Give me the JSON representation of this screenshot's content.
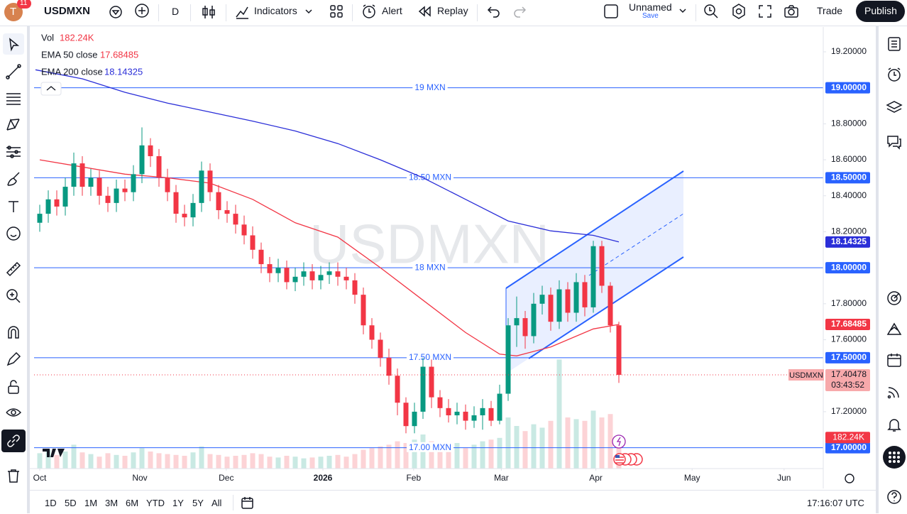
{
  "toolbar": {
    "avatar": "T",
    "badge": "11",
    "symbol": "USDMXN",
    "interval": "D",
    "indicators": "Indicators",
    "alert": "Alert",
    "replay": "Replay",
    "layout_name": "Unnamed",
    "save": "Save",
    "trade": "Trade",
    "publish": "Publish"
  },
  "chart_data": {
    "type": "candlestick",
    "symbol": "USDMXN",
    "watermark": "USDMXN",
    "up_color": "#089981",
    "down_color": "#f23645",
    "open": [
      18.25,
      18.3,
      18.38,
      18.34,
      18.45,
      18.58,
      18.45,
      18.5,
      18.4,
      18.36,
      18.44,
      18.42,
      18.52,
      18.68,
      18.62,
      18.5,
      18.42,
      18.3,
      18.28,
      18.36,
      18.54,
      18.42,
      18.32,
      18.3,
      18.24,
      18.18,
      18.1,
      18.02,
      17.97,
      18.0,
      17.92,
      17.95,
      17.98,
      17.93,
      17.96,
      17.98,
      17.95,
      17.93,
      17.85,
      17.68,
      17.6,
      17.5,
      17.4,
      17.25,
      17.12,
      17.2,
      17.45,
      17.28,
      17.22,
      17.18,
      17.2,
      17.15,
      17.18,
      17.22,
      17.15,
      17.3,
      17.68,
      17.72,
      17.62,
      17.8,
      17.85,
      17.7,
      17.88,
      17.75,
      17.92,
      17.78,
      18.12,
      17.9,
      17.68
    ],
    "high": [
      18.35,
      18.43,
      18.43,
      18.5,
      18.64,
      18.62,
      18.55,
      18.54,
      18.45,
      18.49,
      18.49,
      18.57,
      18.78,
      18.72,
      18.66,
      18.55,
      18.46,
      18.35,
      18.41,
      18.59,
      18.58,
      18.46,
      18.37,
      18.35,
      18.29,
      18.23,
      18.14,
      18.06,
      18.05,
      18.04,
      18.0,
      18.03,
      18.02,
      18.01,
      18.03,
      18.03,
      18.0,
      17.97,
      17.89,
      17.72,
      17.64,
      17.55,
      17.44,
      17.28,
      17.25,
      17.5,
      17.49,
      17.32,
      17.27,
      17.25,
      17.24,
      17.23,
      17.27,
      17.26,
      17.35,
      17.72,
      17.84,
      17.76,
      17.86,
      17.9,
      17.89,
      17.93,
      17.92,
      17.97,
      17.96,
      18.15,
      18.15,
      17.92,
      17.7
    ],
    "low": [
      18.2,
      18.25,
      18.29,
      18.29,
      18.4,
      18.4,
      18.4,
      18.35,
      18.31,
      18.31,
      18.37,
      18.37,
      18.47,
      18.56,
      18.45,
      18.37,
      18.25,
      18.23,
      18.23,
      18.31,
      18.37,
      18.27,
      18.25,
      18.19,
      18.13,
      18.05,
      17.97,
      17.92,
      17.92,
      17.88,
      17.87,
      17.9,
      17.88,
      17.88,
      17.91,
      17.9,
      17.88,
      17.8,
      17.63,
      17.55,
      17.45,
      17.35,
      17.18,
      17.08,
      17.08,
      17.16,
      17.22,
      17.17,
      17.14,
      17.13,
      17.1,
      17.11,
      17.1,
      17.12,
      17.13,
      17.26,
      17.56,
      17.55,
      17.58,
      17.74,
      17.65,
      17.66,
      17.7,
      17.7,
      17.73,
      17.75,
      17.86,
      17.64,
      17.36
    ],
    "close": [
      18.3,
      18.38,
      18.34,
      18.45,
      18.58,
      18.45,
      18.5,
      18.4,
      18.36,
      18.44,
      18.42,
      18.52,
      18.68,
      18.62,
      18.5,
      18.42,
      18.3,
      18.28,
      18.36,
      18.54,
      18.42,
      18.32,
      18.3,
      18.24,
      18.18,
      18.1,
      18.02,
      17.97,
      18.0,
      17.92,
      17.95,
      17.98,
      17.93,
      17.96,
      17.98,
      17.95,
      17.93,
      17.85,
      17.68,
      17.6,
      17.5,
      17.4,
      17.25,
      17.12,
      17.2,
      17.45,
      17.28,
      17.22,
      17.18,
      17.2,
      17.15,
      17.18,
      17.22,
      17.15,
      17.3,
      17.68,
      17.72,
      17.62,
      17.8,
      17.85,
      17.7,
      17.88,
      17.75,
      17.92,
      17.78,
      18.12,
      17.9,
      17.68,
      17.40478
    ],
    "volume_title": "Vol",
    "volume": [
      90,
      110,
      80,
      100,
      140,
      95,
      85,
      70,
      90,
      80,
      75,
      95,
      120,
      100,
      90,
      85,
      80,
      75,
      95,
      130,
      85,
      80,
      70,
      75,
      80,
      90,
      85,
      70,
      65,
      75,
      70,
      60,
      65,
      70,
      75,
      80,
      70,
      85,
      110,
      120,
      130,
      140,
      160,
      150,
      170,
      200,
      160,
      140,
      130,
      150,
      120,
      140,
      160,
      170,
      180,
      300,
      250,
      220,
      260,
      240,
      280,
      640,
      300,
      290,
      280,
      340,
      300,
      320,
      182.24
    ],
    "volume_label": "182.24K",
    "countdown": "03:43:52",
    "overlays": [
      {
        "name": "EMA 50 close",
        "color": "#f23645",
        "x": [
          0,
          5,
          10,
          15,
          20,
          25,
          30,
          35,
          40,
          45,
          50,
          54,
          56,
          60,
          65,
          68
        ],
        "values": [
          18.6,
          18.56,
          18.52,
          18.5,
          18.47,
          18.38,
          18.25,
          18.17,
          18.0,
          17.82,
          17.64,
          17.52,
          17.51,
          17.56,
          17.66,
          17.68485
        ]
      },
      {
        "name": "EMA 200 close",
        "color": "#2a2ed8",
        "x": [
          -0.5,
          5,
          10,
          15,
          20,
          25,
          30,
          35,
          40,
          45,
          50,
          55,
          60,
          65,
          68
        ],
        "values": [
          19.1,
          19.05,
          18.975,
          18.915,
          18.865,
          18.815,
          18.76,
          18.69,
          18.6,
          18.5,
          18.38,
          18.26,
          18.205,
          18.18,
          18.14325
        ]
      }
    ],
    "levels": [
      {
        "value": 19,
        "label": "19 MXN",
        "price_label": "19.00000"
      },
      {
        "value": 18.5,
        "label": "18.50 MXN",
        "price_label": "18.50000"
      },
      {
        "value": 18,
        "label": "18 MXN",
        "price_label": "18.00000"
      },
      {
        "value": 17.5,
        "label": "17.50 MXN",
        "price_label": "17.50000"
      },
      {
        "value": 17,
        "label": "17.00 MXN",
        "price_label": "17.00000"
      }
    ],
    "ylim": [
      16.884,
      19.338
    ],
    "yticks": [
      {
        "value": 17.2,
        "label": "17.20000"
      },
      {
        "value": 17.6,
        "label": "17.60000"
      },
      {
        "value": 17.8,
        "label": "17.80000"
      },
      {
        "value": 18.2,
        "label": "18.20000"
      },
      {
        "value": 18.4,
        "label": "18.40000"
      },
      {
        "value": 18.6,
        "label": "18.60000"
      },
      {
        "value": 18.8,
        "label": "18.80000"
      },
      {
        "value": 19.2,
        "label": "19.20000"
      }
    ],
    "xlim": [
      -0.667,
      92
    ],
    "xticks": [
      {
        "value": 0,
        "label": "Oct"
      },
      {
        "value": 11.75,
        "label": "Nov"
      },
      {
        "value": 21.9,
        "label": "Dec"
      },
      {
        "value": 33.25,
        "label": "2026"
      },
      {
        "value": 43.9,
        "label": "Feb"
      },
      {
        "value": 54.2,
        "label": "Mar"
      },
      {
        "value": 65.3,
        "label": "Apr"
      },
      {
        "value": 76.6,
        "label": "May"
      },
      {
        "value": 87.4,
        "label": "Jun"
      }
    ],
    "grid": false
  },
  "bottom_bar": {
    "ranges": [
      "1D",
      "5D",
      "1M",
      "3M",
      "6M",
      "YTD",
      "1Y",
      "5Y",
      "All"
    ],
    "clock": "17:16:07 UTC"
  }
}
